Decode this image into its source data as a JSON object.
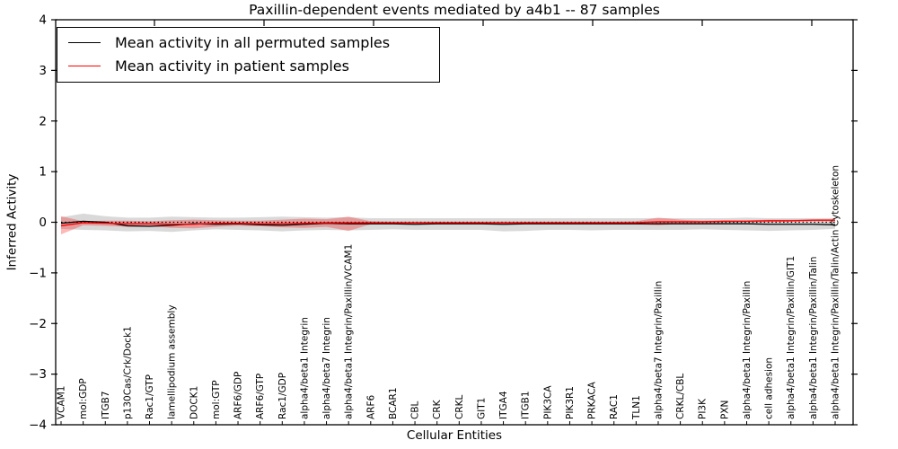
{
  "chart_data": {
    "type": "line",
    "title": "Paxillin-dependent events mediated by a4b1 -- 87 samples",
    "xlabel": "Cellular Entities",
    "ylabel": "Inferred Activity",
    "ylim": [
      -4,
      4
    ],
    "yticks": [
      4,
      3,
      2,
      1,
      0,
      -1,
      -2,
      -3,
      -4
    ],
    "grid": false,
    "legend_position": "upper left inside",
    "zero_line": {
      "y": 0,
      "style": "dotted",
      "color": "#000000"
    },
    "categories": [
      "VCAM1",
      "mol:GDP",
      "ITGB7",
      "p130Cas/Crk/Dock1",
      "Rac1/GTP",
      "lamellipodium assembly",
      "DOCK1",
      "mol:GTP",
      "ARF6/GDP",
      "ARF6/GTP",
      "Rac1/GDP",
      "alpha4/beta1 Integrin",
      "alpha4/beta7 Integrin",
      "alpha4/beta1 Integrin/Paxillin/VCAM1",
      "ARF6",
      "BCAR1",
      "CBL",
      "CRK",
      "CRKL",
      "GIT1",
      "ITGA4",
      "ITGB1",
      "PIK3CA",
      "PIK3R1",
      "PRKACA",
      "RAC1",
      "TLN1",
      "alpha4/beta7 Integrin/Paxillin",
      "CRKL/CBL",
      "PI3K",
      "PXN",
      "alpha4/beta1 Integrin/Paxillin",
      "cell adhesion",
      "alpha4/beta1 Integrin/Paxillin/GIT1",
      "alpha4/beta1 Integrin/Paxillin/Talin",
      "alpha4/beta1 Integrin/Paxillin/Talin/Actin Cytoskeleton"
    ],
    "series": [
      {
        "name": "permuted-mean",
        "legend_label": "Mean activity in all permuted samples",
        "color": "#000000",
        "band_color": "#808080",
        "band_opacity": 0.3,
        "values": [
          -0.02,
          0.02,
          0.0,
          -0.07,
          -0.08,
          -0.06,
          -0.03,
          -0.04,
          -0.03,
          -0.05,
          -0.06,
          -0.04,
          -0.02,
          -0.03,
          -0.03,
          -0.03,
          -0.04,
          -0.03,
          -0.03,
          -0.03,
          -0.04,
          -0.03,
          -0.03,
          -0.03,
          -0.03,
          -0.03,
          -0.03,
          -0.03,
          -0.03,
          -0.03,
          -0.03,
          -0.03,
          -0.04,
          -0.04,
          -0.04,
          -0.05
        ],
        "band_upper": [
          0.1,
          0.17,
          0.12,
          0.09,
          0.09,
          0.11,
          0.1,
          0.09,
          0.09,
          0.1,
          0.11,
          0.1,
          0.09,
          0.1,
          0.08,
          0.08,
          0.08,
          0.08,
          0.08,
          0.08,
          0.08,
          0.08,
          0.08,
          0.08,
          0.08,
          0.08,
          0.08,
          0.08,
          0.08,
          0.08,
          0.08,
          0.09,
          0.08,
          0.08,
          0.08,
          0.07
        ],
        "band_lower": [
          -0.13,
          -0.15,
          -0.16,
          -0.18,
          -0.17,
          -0.19,
          -0.16,
          -0.14,
          -0.15,
          -0.16,
          -0.18,
          -0.16,
          -0.15,
          -0.16,
          -0.15,
          -0.14,
          -0.15,
          -0.15,
          -0.15,
          -0.15,
          -0.18,
          -0.17,
          -0.15,
          -0.15,
          -0.16,
          -0.15,
          -0.15,
          -0.15,
          -0.15,
          -0.14,
          -0.15,
          -0.16,
          -0.17,
          -0.16,
          -0.15,
          -0.13
        ]
      },
      {
        "name": "patient-mean",
        "legend_label": "Mean activity in patient samples",
        "color": "#ff0000",
        "band_color": "#ff0000",
        "band_opacity": 0.28,
        "values": [
          -0.07,
          -0.01,
          -0.02,
          -0.03,
          -0.03,
          -0.04,
          -0.04,
          -0.02,
          -0.02,
          -0.03,
          -0.03,
          -0.02,
          -0.01,
          -0.01,
          -0.01,
          -0.01,
          -0.01,
          -0.01,
          -0.01,
          -0.01,
          -0.01,
          -0.01,
          -0.01,
          -0.01,
          -0.01,
          -0.01,
          -0.01,
          0.01,
          0.01,
          0.01,
          0.02,
          0.02,
          0.03,
          0.03,
          0.04,
          0.04
        ],
        "band_upper": [
          0.12,
          0.02,
          0.03,
          0.03,
          0.02,
          0.04,
          0.05,
          0.04,
          0.03,
          0.03,
          0.05,
          0.07,
          0.06,
          0.11,
          0.02,
          0.01,
          0.01,
          0.01,
          0.01,
          0.01,
          0.01,
          0.01,
          0.01,
          0.01,
          0.01,
          0.01,
          0.02,
          0.09,
          0.05,
          0.03,
          0.04,
          0.04,
          0.05,
          0.05,
          0.06,
          0.07
        ],
        "band_lower": [
          -0.24,
          -0.06,
          -0.07,
          -0.09,
          -0.08,
          -0.11,
          -0.12,
          -0.09,
          -0.07,
          -0.08,
          -0.1,
          -0.11,
          -0.09,
          -0.17,
          -0.04,
          -0.03,
          -0.03,
          -0.03,
          -0.03,
          -0.03,
          -0.03,
          -0.03,
          -0.03,
          -0.03,
          -0.03,
          -0.03,
          -0.04,
          -0.06,
          -0.03,
          -0.02,
          -0.01,
          0.0,
          0.0,
          0.01,
          0.02,
          0.02
        ]
      }
    ]
  }
}
